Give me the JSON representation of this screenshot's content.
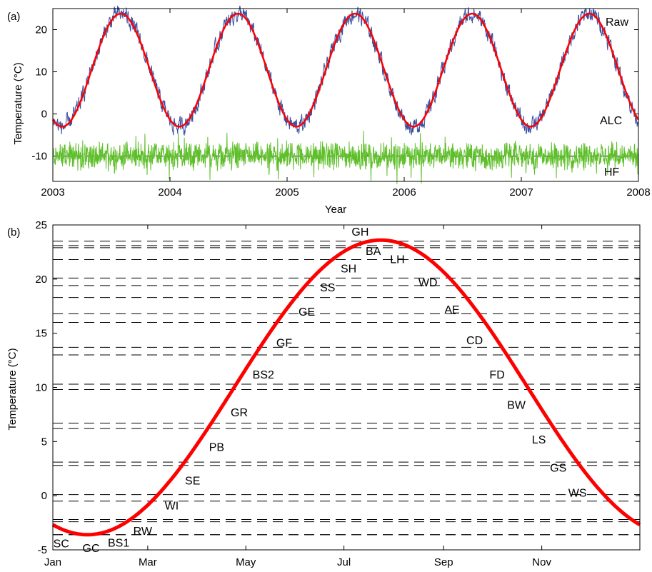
{
  "colors": {
    "raw": "#3a4fa0",
    "alc": "#ff0000",
    "hf": "#5fbf2a",
    "dashed": "#000000"
  },
  "chart_data": [
    {
      "panel_label": "(a)",
      "type": "line",
      "xlabel": "Year",
      "ylabel": "Temperature (°C)",
      "xlim": [
        2003,
        2008
      ],
      "ylim": [
        -16,
        25
      ],
      "x_ticks": [
        "2003",
        "2004",
        "2005",
        "2006",
        "2007",
        "2008"
      ],
      "y_ticks": [
        "-10",
        "0",
        "10",
        "20"
      ],
      "reference_line_y": -10,
      "alc_model": {
        "mean": 10.4,
        "amplitude": 13.4,
        "peak_phase_years": 0.58
      },
      "series": [
        {
          "name": "Raw",
          "color": "#3a4fa0",
          "description_values_approx": "ALC curve plus high-frequency noise, amplitude about ±4 °C"
        },
        {
          "name": "ALC",
          "color": "#ff0000"
        },
        {
          "name": "HF",
          "color": "#5fbf2a",
          "offset": -10
        }
      ],
      "extrema": {
        "peaks": [
          [
            2003.58,
            23.8
          ],
          [
            2004.58,
            23.8
          ],
          [
            2005.58,
            24.0
          ],
          [
            2006.58,
            24.4
          ],
          [
            2007.58,
            24.0
          ]
        ],
        "troughs": [
          [
            2003.0,
            -3.0
          ],
          [
            2004.06,
            -2.6
          ],
          [
            2005.08,
            -4.0
          ],
          [
            2006.08,
            -3.0
          ],
          [
            2007.05,
            -2.0
          ]
        ]
      }
    },
    {
      "panel_label": "(b)",
      "type": "line",
      "xlabel": "",
      "ylabel": "Temperature (°C)",
      "xlim": [
        0,
        365
      ],
      "ylim": [
        -5,
        25
      ],
      "x_ticks": [
        {
          "label": "Jan",
          "day": 0
        },
        {
          "label": "Mar",
          "day": 59
        },
        {
          "label": "May",
          "day": 120
        },
        {
          "label": "Jul",
          "day": 181
        },
        {
          "label": "Sep",
          "day": 243
        },
        {
          "label": "Nov",
          "day": 304
        }
      ],
      "y_ticks": [
        "-5",
        "0",
        "5",
        "10",
        "15",
        "20",
        "25"
      ],
      "curve": {
        "color": "#ff0000",
        "mean": 10.0,
        "amplitude": 13.6,
        "peak_day": 204
      },
      "thresholds": [
        {
          "label": "SC",
          "temp": -3.6,
          "day": 7
        },
        {
          "label": "GC",
          "temp": -3.6,
          "day": 14
        },
        {
          "label": "BS1",
          "temp": -2.4,
          "day": 32
        },
        {
          "label": "RW",
          "temp": -0.5,
          "day": 47
        },
        {
          "label": "WI",
          "temp": 2.8,
          "day": 65
        },
        {
          "label": "SE",
          "temp": 6.2,
          "day": 78
        },
        {
          "label": "PB",
          "temp": 9.8,
          "day": 93
        },
        {
          "label": "GR",
          "temp": 13.0,
          "day": 107
        },
        {
          "label": "BS2",
          "temp": 16.0,
          "day": 122
        },
        {
          "label": "GF",
          "temp": 18.3,
          "day": 135
        },
        {
          "label": "GE",
          "temp": 20.1,
          "day": 149
        },
        {
          "label": "SS",
          "temp": 21.8,
          "day": 162
        },
        {
          "label": "SH",
          "temp": 22.9,
          "day": 175
        },
        {
          "label": "GH",
          "temp": 23.5,
          "day": 192
        },
        {
          "label": "BA",
          "temp": 23.1,
          "day": 209
        },
        {
          "label": "LH",
          "temp": 21.8,
          "day": 224
        },
        {
          "label": "WD",
          "temp": 19.4,
          "day": 243
        },
        {
          "label": "AE",
          "temp": 16.8,
          "day": 258
        },
        {
          "label": "CD",
          "temp": 13.7,
          "day": 272
        },
        {
          "label": "FD",
          "temp": 10.3,
          "day": 286
        },
        {
          "label": "BW",
          "temp": 6.7,
          "day": 298
        },
        {
          "label": "LS",
          "temp": 3.1,
          "day": 312
        },
        {
          "label": "GS",
          "temp": 0.1,
          "day": 324
        },
        {
          "label": "WS",
          "temp": -2.2,
          "day": 336
        }
      ]
    }
  ]
}
